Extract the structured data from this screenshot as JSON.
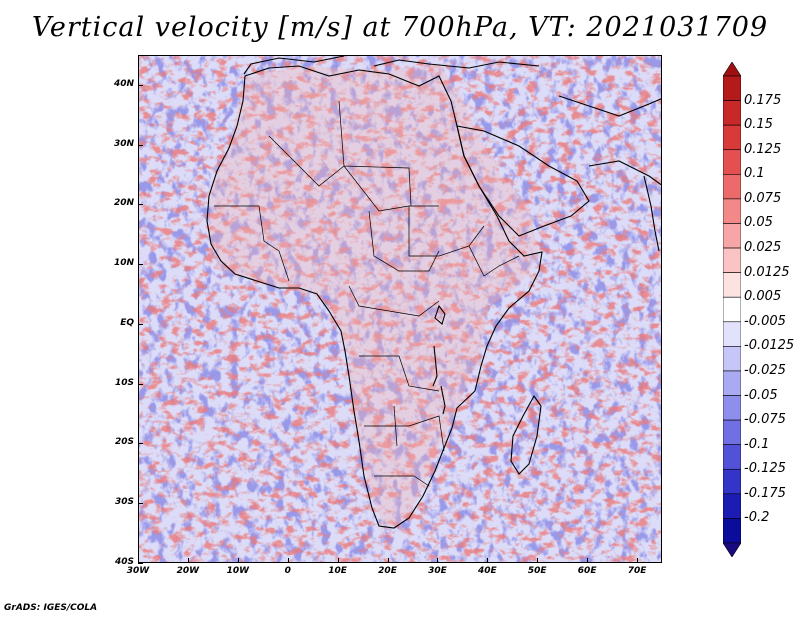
{
  "title": "Vertical velocity [m/s] at 700hPa, VT: 2021031709",
  "credit": "GrADS: IGES/COLA",
  "map": {
    "lat_labels": [
      "40N",
      "30N",
      "20N",
      "10N",
      "EQ",
      "10S",
      "20S",
      "30S",
      "40S"
    ],
    "lon_labels": [
      "30W",
      "20W",
      "10W",
      "0",
      "10E",
      "20E",
      "30E",
      "40E",
      "50E",
      "60E",
      "70E"
    ],
    "lon_range": [
      -30,
      75
    ],
    "lat_range": [
      -40,
      45
    ]
  },
  "colorbar": {
    "labels": [
      "0.175",
      "0.15",
      "0.125",
      "0.1",
      "0.075",
      "0.05",
      "0.025",
      "0.0125",
      "0.005",
      "-0.005",
      "-0.0125",
      "-0.025",
      "-0.05",
      "-0.075",
      "-0.1",
      "-0.125",
      "-0.175",
      "-0.2"
    ],
    "colors": [
      "#b41a1a",
      "#c82828",
      "#d83a3a",
      "#e45050",
      "#ec6a6a",
      "#f28888",
      "#f6a6a6",
      "#fac4c4",
      "#fde2e2",
      "#ffffff",
      "#e2e2fc",
      "#c6c6f8",
      "#aaaaf2",
      "#8e8eec",
      "#7070e4",
      "#5252d8",
      "#3434c8",
      "#1c1cb4",
      "#0c0c9c"
    ],
    "top_arrow_color": "#a01010",
    "bottom_arrow_color": "#1a0a80"
  }
}
